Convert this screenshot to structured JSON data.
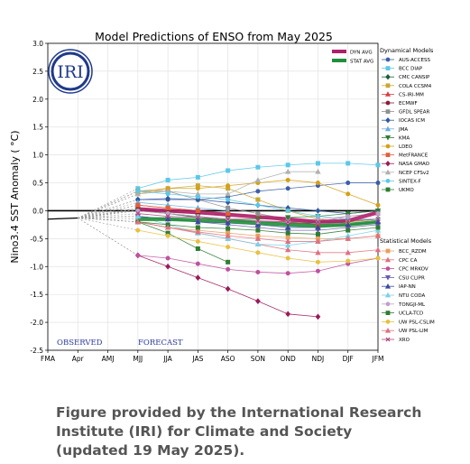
{
  "caption": {
    "line1": "Figure provided by the International Research",
    "line2": "Institute (IRI) for Climate and Society",
    "line3": "(updated 19 May 2025)."
  },
  "logo": {
    "text": "IRI"
  },
  "chart_data": {
    "type": "line",
    "title": "Model Predictions of ENSO from May 2025",
    "ylabel": "Nino3.4 SST Anomaly ( °C)",
    "xlabel": "",
    "categories": [
      "FMA",
      "Apr",
      "AMJ",
      "MJJ",
      "JJA",
      "JAS",
      "ASO",
      "SON",
      "OND",
      "NDJ",
      "DJF",
      "JFM"
    ],
    "yticks": [
      "3.0",
      "2.5",
      "2.0",
      "1.5",
      "1.0",
      "0.5",
      "0.0",
      "-0.5",
      "-1.0",
      "-1.5",
      "-2.0",
      "-2.5"
    ],
    "ylim": [
      -2.5,
      3.0
    ],
    "grid": true,
    "zero_line": true,
    "annotations": {
      "observed": "OBSERVED",
      "forecast": "FORECAST"
    },
    "legend_headers": {
      "dynamical": "Dynamical Models",
      "statistical": "Statistical Models"
    },
    "observed": {
      "x": [
        "FMA",
        "Apr"
      ],
      "values": [
        -0.15,
        -0.13
      ]
    },
    "avg_series": [
      {
        "name": "DYN AVG",
        "color": "#b0206a",
        "values": [
          0.03,
          0.0,
          -0.03,
          -0.07,
          -0.11,
          -0.15,
          -0.2,
          -0.18,
          -0.03
        ]
      },
      {
        "name": "STAT AVG",
        "color": "#1f8f3a",
        "values": [
          -0.15,
          -0.15,
          -0.17,
          -0.19,
          -0.22,
          -0.25,
          -0.27,
          -0.25,
          -0.2
        ]
      }
    ],
    "dynamical_models": [
      {
        "name": "AUS-ACCESS",
        "color": "#3b5ea8",
        "marker": "circle",
        "values": [
          0.2,
          0.2,
          0.2,
          0.25,
          0.35,
          0.4,
          0.45,
          0.5,
          0.5
        ]
      },
      {
        "name": "BCC DIAP",
        "color": "#5bc8e8",
        "marker": "square",
        "values": [
          0.4,
          0.55,
          0.6,
          0.72,
          0.78,
          0.82,
          0.85,
          0.85,
          0.82
        ]
      },
      {
        "name": "CMC CANSIP",
        "color": "#1a5c3a",
        "marker": "diamond",
        "values": [
          0.02,
          -0.05,
          -0.12,
          -0.18,
          -0.2,
          -0.22,
          -0.22,
          -0.2,
          -0.15
        ]
      },
      {
        "name": "COLA CCSM4",
        "color": "#c8a832",
        "marker": "square",
        "values": [
          0.35,
          0.4,
          0.45,
          0.4,
          0.2,
          0.0,
          -0.15,
          -0.2,
          -0.15
        ]
      },
      {
        "name": "CS-IRI-MM",
        "color": "#d84040",
        "marker": "triangle",
        "values": [
          0.1,
          0.05,
          0.0,
          -0.05,
          -0.1,
          -0.2,
          -0.25,
          -0.25,
          -0.2
        ]
      },
      {
        "name": "ECMWF",
        "color": "#8a1a3a",
        "marker": "circle",
        "values": [
          0.05,
          -0.02,
          -0.05,
          -0.08,
          null,
          null,
          null,
          null,
          null
        ]
      },
      {
        "name": "GFDL SPEAR",
        "color": "#909090",
        "marker": "square",
        "values": [
          0.35,
          0.35,
          0.2,
          0.05,
          -0.05,
          -0.15,
          -0.2,
          -0.1,
          -0.05
        ]
      },
      {
        "name": "IOCAS ICM",
        "color": "#2d5aa0",
        "marker": "diamond",
        "values": [
          0.2,
          0.22,
          0.2,
          0.15,
          0.1,
          0.05,
          0.0,
          -0.05,
          0.0
        ]
      },
      {
        "name": "JMA",
        "color": "#6aaedc",
        "marker": "triangle",
        "values": [
          0.15,
          0.1,
          0.05,
          0.0,
          null,
          null,
          null,
          null,
          null
        ]
      },
      {
        "name": "KMA",
        "color": "#2e7d32",
        "marker": "triangledown",
        "values": [
          0.0,
          -0.05,
          -0.1,
          -0.15,
          -0.15,
          -0.12,
          -0.1,
          -0.05,
          0.0
        ]
      },
      {
        "name": "LDEO",
        "color": "#d4a017",
        "marker": "circle",
        "values": [
          0.3,
          0.4,
          0.4,
          0.45,
          0.5,
          0.55,
          0.5,
          0.3,
          0.1
        ]
      },
      {
        "name": "MetFRANCE",
        "color": "#e0603a",
        "marker": "square",
        "values": [
          0.1,
          0.05,
          0.0,
          -0.05,
          null,
          null,
          null,
          null,
          null
        ]
      },
      {
        "name": "NASA GMAO",
        "color": "#9a1a5a",
        "marker": "diamond",
        "values": [
          -0.8,
          -1.0,
          -1.2,
          -1.4,
          -1.62,
          -1.85,
          -1.9,
          null,
          null
        ]
      },
      {
        "name": "NCEP CFSv2",
        "color": "#b0b0b0",
        "marker": "triangle",
        "values": [
          0.3,
          0.35,
          0.3,
          0.3,
          0.55,
          0.7,
          0.7,
          null,
          null
        ]
      },
      {
        "name": "SINTEX-F",
        "color": "#5bc8e8",
        "marker": "circle",
        "values": [
          0.35,
          0.3,
          0.25,
          0.2,
          0.1,
          0.0,
          -0.1,
          -0.15,
          -0.15
        ]
      },
      {
        "name": "UKMO",
        "color": "#2e7d32",
        "marker": "square",
        "values": [
          -0.2,
          -0.4,
          -0.68,
          -0.92,
          null,
          null,
          null,
          null,
          null
        ]
      }
    ],
    "statistical_models": [
      {
        "name": "BCC_RZDM",
        "color": "#e8a060",
        "marker": "square",
        "values": [
          -0.2,
          -0.3,
          -0.35,
          -0.4,
          -0.45,
          -0.48,
          -0.5,
          -0.5,
          -0.45
        ]
      },
      {
        "name": "CPC CA",
        "color": "#e07080",
        "marker": "triangle",
        "values": [
          -0.2,
          -0.3,
          -0.4,
          -0.5,
          -0.6,
          -0.7,
          -0.75,
          -0.75,
          -0.7
        ]
      },
      {
        "name": "CPC MRKOV",
        "color": "#c050a0",
        "marker": "circle",
        "values": [
          -0.8,
          -0.85,
          -0.95,
          -1.05,
          -1.1,
          -1.12,
          -1.08,
          -0.95,
          -0.85
        ]
      },
      {
        "name": "CSU CLIPR",
        "color": "#6a5ab0",
        "marker": "triangledown",
        "values": [
          -0.1,
          -0.15,
          -0.2,
          -0.25,
          -0.3,
          -0.35,
          -0.35,
          -0.3,
          -0.25
        ]
      },
      {
        "name": "IAP-NN",
        "color": "#3a4aa0",
        "marker": "triangle",
        "values": [
          -0.1,
          -0.15,
          -0.2,
          -0.22,
          -0.25,
          -0.3,
          -0.3,
          -0.25,
          -0.2
        ]
      },
      {
        "name": "NTU CODA",
        "color": "#7ad0e8",
        "marker": "triangle",
        "values": [
          -0.1,
          -0.25,
          -0.4,
          -0.5,
          -0.6,
          -0.62,
          -0.55,
          -0.45,
          -0.35
        ]
      },
      {
        "name": "TONGJI-ML",
        "color": "#c0a0c8",
        "marker": "circle",
        "values": [
          0.0,
          -0.05,
          -0.1,
          -0.15,
          -0.2,
          -0.2,
          -0.15,
          -0.1,
          -0.05
        ]
      },
      {
        "name": "UCLA-TCD",
        "color": "#2e7d32",
        "marker": "square",
        "values": [
          -0.2,
          -0.25,
          -0.3,
          -0.32,
          -0.35,
          -0.4,
          -0.42,
          -0.35,
          -0.3
        ]
      },
      {
        "name": "UW PSL-CSLIM",
        "color": "#e8c040",
        "marker": "circle",
        "values": [
          -0.35,
          -0.45,
          -0.55,
          -0.65,
          -0.75,
          -0.85,
          -0.92,
          -0.9,
          -0.85
        ]
      },
      {
        "name": "UW PSL-LIM",
        "color": "#e07080",
        "marker": "triangle",
        "values": [
          -0.2,
          -0.3,
          -0.38,
          -0.45,
          -0.5,
          -0.55,
          -0.55,
          -0.5,
          -0.45
        ]
      },
      {
        "name": "XRO",
        "color": "#b04080",
        "marker": "x",
        "values": [
          -0.05,
          -0.1,
          -0.12,
          -0.15,
          -0.18,
          -0.2,
          -0.2,
          -0.18,
          -0.15
        ]
      }
    ]
  }
}
